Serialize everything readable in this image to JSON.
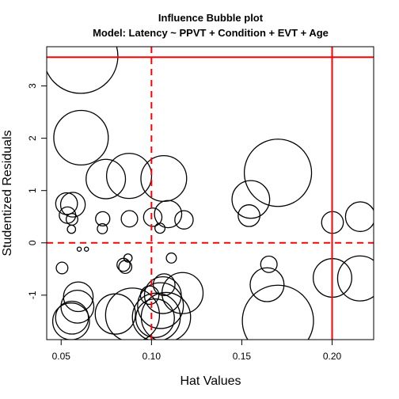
{
  "chart_data": {
    "type": "scatter",
    "title": "Influence Bubble plot",
    "subtitle": "Model: Latency ~ PPVT + Condition + EVT + Age",
    "xlabel": "Hat Values",
    "ylabel": "Studentized Residuals",
    "xlim": [
      0.042,
      0.223
    ],
    "ylim": [
      -1.85,
      3.75
    ],
    "x_ticks": [
      0.05,
      0.1,
      0.15,
      0.2
    ],
    "x_tick_labels": [
      "0.05",
      "0.10",
      "0.15",
      "0.20"
    ],
    "y_ticks": [
      -1,
      0,
      1,
      2,
      3
    ],
    "y_tick_labels": [
      "-1",
      "0",
      "1",
      "2",
      "3"
    ],
    "grid": false,
    "point_color": "#000000",
    "reference_line_color": "#ff0000",
    "reference_lines": {
      "hat_dashed": 0.1,
      "hat_solid": 0.2,
      "residual_dashed": 0.0,
      "residual_solid": 3.55
    },
    "bubble_size_note": "bubble area proportional to Cook's distance",
    "points": [
      {
        "x": 0.0608,
        "y": 3.57,
        "size": 0.082
      },
      {
        "x": 0.061,
        "y": 2.01,
        "size": 0.044
      },
      {
        "x": 0.0747,
        "y": 1.22,
        "size": 0.023
      },
      {
        "x": 0.0876,
        "y": 1.28,
        "size": 0.03
      },
      {
        "x": 0.1068,
        "y": 1.23,
        "size": 0.031
      },
      {
        "x": 0.1092,
        "y": 0.55,
        "size": 0.011
      },
      {
        "x": 0.17,
        "y": 1.34,
        "size": 0.067
      },
      {
        "x": 0.155,
        "y": 0.83,
        "size": 0.021
      },
      {
        "x": 0.154,
        "y": 0.52,
        "size": 0.007
      },
      {
        "x": 0.2002,
        "y": 0.39,
        "size": 0.007
      },
      {
        "x": 0.2156,
        "y": 0.5,
        "size": 0.013
      },
      {
        "x": 0.053,
        "y": 0.75,
        "size": 0.007
      },
      {
        "x": 0.0565,
        "y": 0.73,
        "size": 0.009
      },
      {
        "x": 0.0535,
        "y": 0.53,
        "size": 0.004
      },
      {
        "x": 0.056,
        "y": 0.45,
        "size": 0.002
      },
      {
        "x": 0.0557,
        "y": 0.26,
        "size": 0.001
      },
      {
        "x": 0.073,
        "y": 0.46,
        "size": 0.003
      },
      {
        "x": 0.0728,
        "y": 0.27,
        "size": 0.0015
      },
      {
        "x": 0.0878,
        "y": 0.46,
        "size": 0.004
      },
      {
        "x": 0.1007,
        "y": 0.49,
        "size": 0.005
      },
      {
        "x": 0.1047,
        "y": 0.28,
        "size": 0.0015
      },
      {
        "x": 0.118,
        "y": 0.44,
        "size": 0.005
      },
      {
        "x": 0.06,
        "y": -0.12,
        "size": 0.00025
      },
      {
        "x": 0.064,
        "y": -0.12,
        "size": 0.00025
      },
      {
        "x": 0.087,
        "y": -0.29,
        "size": 0.001
      },
      {
        "x": 0.0845,
        "y": -0.42,
        "size": 0.0025
      },
      {
        "x": 0.0855,
        "y": -0.46,
        "size": 0.0025
      },
      {
        "x": 0.111,
        "y": -0.29,
        "size": 0.0015
      },
      {
        "x": 0.0505,
        "y": -0.48,
        "size": 0.002
      },
      {
        "x": 0.0595,
        "y": -1.03,
        "size": 0.013
      },
      {
        "x": 0.059,
        "y": -1.22,
        "size": 0.016
      },
      {
        "x": 0.056,
        "y": -1.43,
        "size": 0.016
      },
      {
        "x": 0.0555,
        "y": -1.5,
        "size": 0.02
      },
      {
        "x": 0.08,
        "y": -1.36,
        "size": 0.024
      },
      {
        "x": 0.0895,
        "y": -1.38,
        "size": 0.043
      },
      {
        "x": 0.099,
        "y": -1.0,
        "size": 0.005
      },
      {
        "x": 0.107,
        "y": -0.8,
        "size": 0.007
      },
      {
        "x": 0.1063,
        "y": -1.0,
        "size": 0.02
      },
      {
        "x": 0.1172,
        "y": -0.96,
        "size": 0.025
      },
      {
        "x": 0.105,
        "y": -1.2,
        "size": 0.031
      },
      {
        "x": 0.1027,
        "y": -1.42,
        "size": 0.034
      },
      {
        "x": 0.108,
        "y": -1.42,
        "size": 0.036
      },
      {
        "x": 0.102,
        "y": -1.44,
        "size": 0.022
      },
      {
        "x": 0.165,
        "y": -0.41,
        "size": 0.004
      },
      {
        "x": 0.164,
        "y": -0.8,
        "size": 0.017
      },
      {
        "x": 0.17,
        "y": -1.49,
        "size": 0.075
      },
      {
        "x": 0.2002,
        "y": -0.67,
        "size": 0.022
      },
      {
        "x": 0.2155,
        "y": -0.68,
        "size": 0.03
      }
    ]
  }
}
